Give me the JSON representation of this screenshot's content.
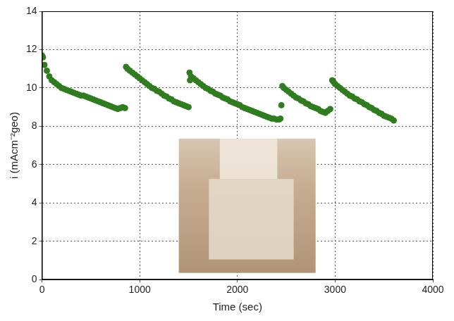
{
  "chart_data": {
    "type": "scatter",
    "x_label": "Time (sec)",
    "y_label": "i (mAcm⁻²geo)",
    "color": "#2f7d1e",
    "marker": "circle",
    "grid": true,
    "xlim": [
      0,
      4000
    ],
    "xticks": [
      0,
      1000,
      2000,
      3000,
      4000
    ],
    "ylim": [
      0,
      14
    ],
    "yticks": [
      0,
      2,
      4,
      6,
      8,
      10,
      12,
      14
    ],
    "x": [
      0,
      10,
      25,
      50,
      75,
      100,
      125,
      150,
      175,
      200,
      225,
      250,
      275,
      300,
      325,
      350,
      375,
      400,
      425,
      450,
      475,
      500,
      525,
      550,
      575,
      600,
      625,
      650,
      675,
      700,
      725,
      750,
      775,
      800,
      825,
      850,
      860,
      875,
      900,
      925,
      950,
      975,
      1000,
      1025,
      1050,
      1075,
      1100,
      1125,
      1150,
      1175,
      1200,
      1225,
      1250,
      1275,
      1300,
      1325,
      1350,
      1375,
      1400,
      1425,
      1450,
      1475,
      1500,
      1510,
      1515,
      1525,
      1550,
      1575,
      1600,
      1625,
      1650,
      1675,
      1700,
      1725,
      1750,
      1775,
      1800,
      1825,
      1850,
      1875,
      1900,
      1925,
      1950,
      1975,
      2000,
      2025,
      2050,
      2075,
      2100,
      2125,
      2150,
      2175,
      2200,
      2225,
      2250,
      2275,
      2300,
      2325,
      2350,
      2375,
      2400,
      2425,
      2440,
      2450,
      2460,
      2475,
      2500,
      2525,
      2550,
      2575,
      2600,
      2625,
      2650,
      2675,
      2700,
      2725,
      2750,
      2775,
      2800,
      2825,
      2850,
      2875,
      2900,
      2925,
      2950,
      2970,
      2985,
      3000,
      3025,
      3050,
      3075,
      3100,
      3125,
      3150,
      3175,
      3200,
      3225,
      3250,
      3275,
      3300,
      3325,
      3350,
      3375,
      3400,
      3425,
      3450,
      3475,
      3500,
      3525,
      3550,
      3575,
      3600
    ],
    "values": [
      11.7,
      11.6,
      11.2,
      10.9,
      10.6,
      10.4,
      10.3,
      10.2,
      10.1,
      10.0,
      9.95,
      9.9,
      9.85,
      9.8,
      9.75,
      9.7,
      9.65,
      9.6,
      9.6,
      9.55,
      9.5,
      9.45,
      9.4,
      9.35,
      9.3,
      9.25,
      9.2,
      9.15,
      9.1,
      9.05,
      9.0,
      8.95,
      8.9,
      8.95,
      9.0,
      8.95,
      11.1,
      11.0,
      10.9,
      10.8,
      10.7,
      10.6,
      10.5,
      10.4,
      10.3,
      10.2,
      10.1,
      10.0,
      9.95,
      9.85,
      9.8,
      9.7,
      9.6,
      9.55,
      9.45,
      9.4,
      9.3,
      9.25,
      9.2,
      9.15,
      9.1,
      9.05,
      9.0,
      10.8,
      10.4,
      10.6,
      10.5,
      10.4,
      10.3,
      10.2,
      10.1,
      10.0,
      9.95,
      9.85,
      9.8,
      9.7,
      9.65,
      9.6,
      9.5,
      9.45,
      9.4,
      9.3,
      9.25,
      9.2,
      9.15,
      9.1,
      9.0,
      8.95,
      8.9,
      8.85,
      8.8,
      8.75,
      8.7,
      8.65,
      8.6,
      8.55,
      8.5,
      8.45,
      8.4,
      8.4,
      8.35,
      8.35,
      8.4,
      9.1,
      10.1,
      10.0,
      9.9,
      9.8,
      9.7,
      9.6,
      9.5,
      9.45,
      9.35,
      9.3,
      9.2,
      9.15,
      9.05,
      9.0,
      8.95,
      8.9,
      8.8,
      8.75,
      8.7,
      8.8,
      8.9,
      10.4,
      10.3,
      10.2,
      10.1,
      10.0,
      9.9,
      9.8,
      9.7,
      9.6,
      9.55,
      9.45,
      9.4,
      9.3,
      9.25,
      9.15,
      9.1,
      9.0,
      8.95,
      8.85,
      8.8,
      8.7,
      8.65,
      8.55,
      8.5,
      8.45,
      8.4,
      8.3
    ]
  }
}
